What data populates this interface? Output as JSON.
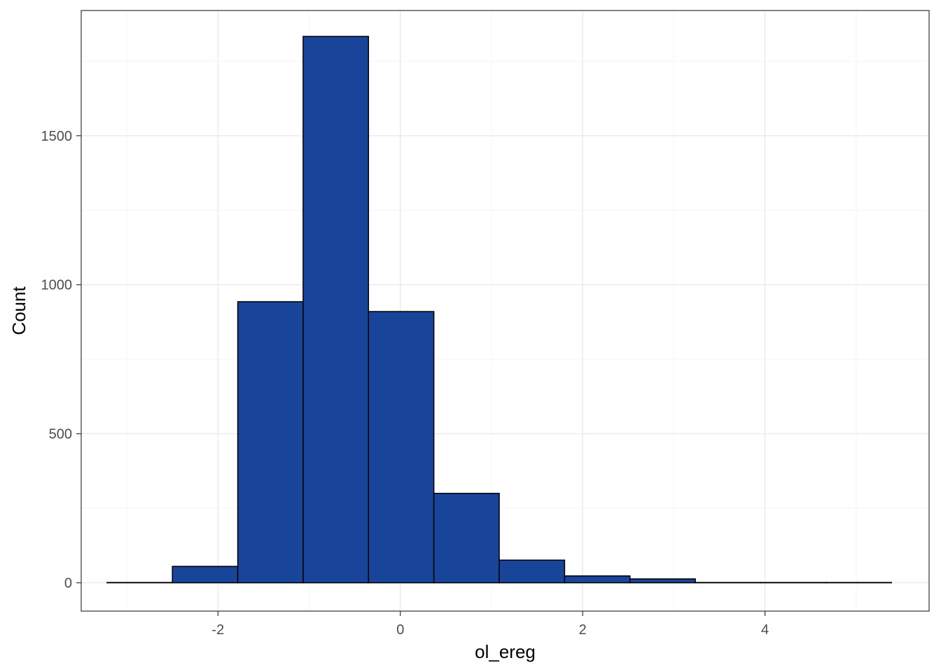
{
  "chart_data": {
    "type": "bar",
    "xlabel": "ol_ereg",
    "ylabel": "Count",
    "xlim": [
      -3.5,
      5.8
    ],
    "ylim": [
      -95,
      1920
    ],
    "x_ticks": [
      -2,
      0,
      2,
      4
    ],
    "x_tick_labels": [
      "-2",
      "0",
      "2",
      "4"
    ],
    "y_ticks": [
      0,
      500,
      1000,
      1500
    ],
    "y_tick_labels": [
      "0",
      "500",
      "1000",
      "1500"
    ],
    "grid": true,
    "legend": "none",
    "bin_width": 0.717,
    "bins": [
      {
        "x_start": -3.217,
        "x_end": -2.5,
        "count": 1
      },
      {
        "x_start": -2.5,
        "x_end": -1.783,
        "count": 55
      },
      {
        "x_start": -1.783,
        "x_end": -1.066,
        "count": 943
      },
      {
        "x_start": -1.066,
        "x_end": -0.349,
        "count": 1833
      },
      {
        "x_start": -0.349,
        "x_end": 0.368,
        "count": 910
      },
      {
        "x_start": 0.368,
        "x_end": 1.085,
        "count": 300
      },
      {
        "x_start": 1.085,
        "x_end": 1.802,
        "count": 76
      },
      {
        "x_start": 1.802,
        "x_end": 2.519,
        "count": 23
      },
      {
        "x_start": 2.519,
        "x_end": 3.236,
        "count": 13
      },
      {
        "x_start": 3.236,
        "x_end": 3.953,
        "count": 1
      },
      {
        "x_start": 3.953,
        "x_end": 4.67,
        "count": 1
      },
      {
        "x_start": 4.67,
        "x_end": 5.387,
        "count": 1
      }
    ],
    "colors": {
      "bar_fill": "#18449a",
      "bar_stroke": "#000000",
      "grid_major": "#ebebeb",
      "grid_minor": "#f5f5f5",
      "panel_border": "#333333"
    }
  }
}
